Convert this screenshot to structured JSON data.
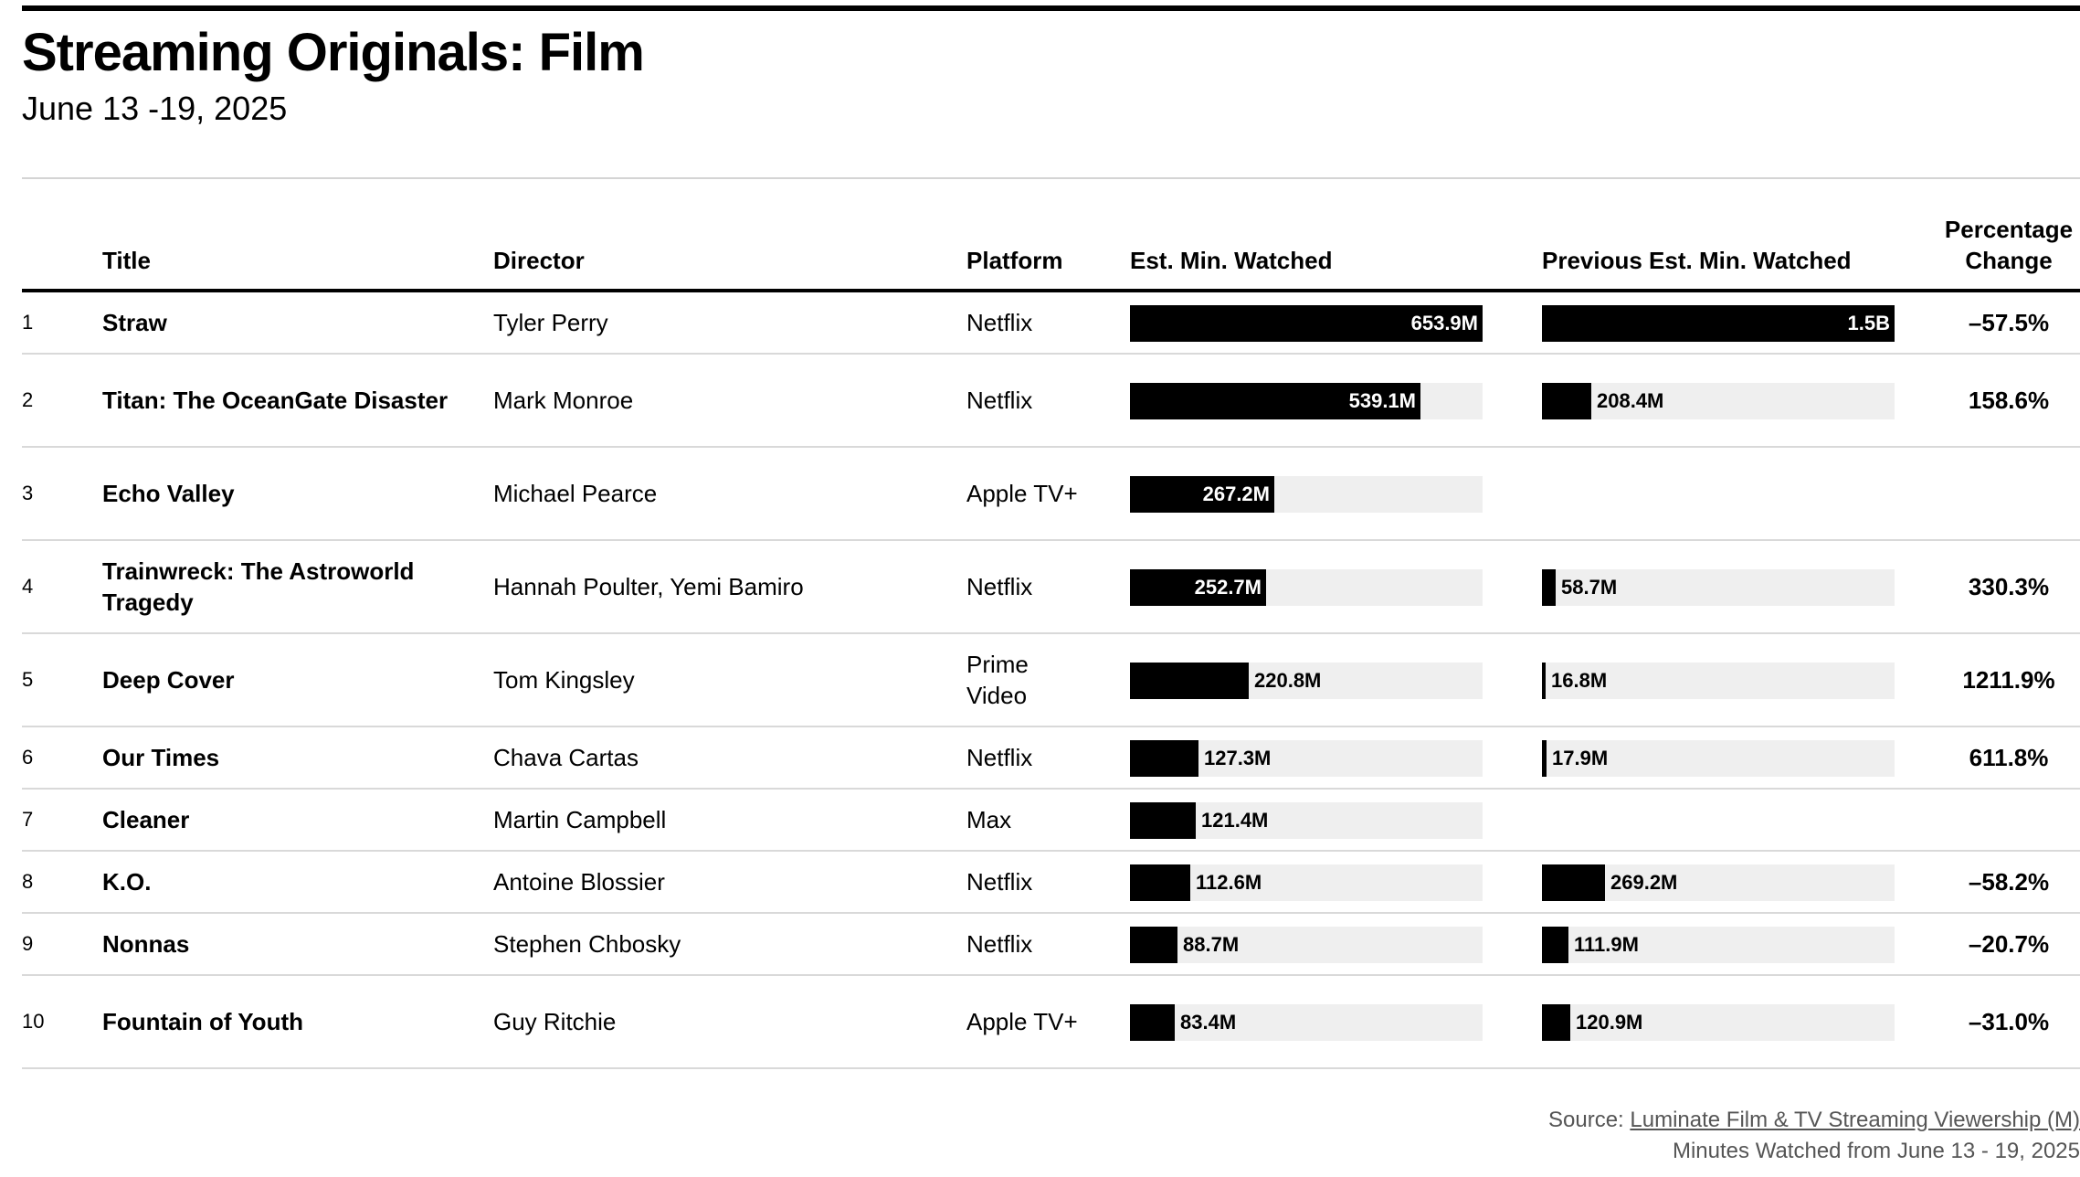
{
  "title": "Streaming Originals: Film",
  "subtitle": "June 13 -19, 2025",
  "columns": {
    "title": "Title",
    "director": "Director",
    "platform": "Platform",
    "est": "Est. Min. Watched",
    "prev": "Previous Est. Min. Watched",
    "pct_line1": "Percentage",
    "pct_line2": "Change"
  },
  "source": {
    "prefix": "Source: ",
    "link": "Luminate Film & TV Streaming Viewership (M)",
    "note": "Minutes Watched from June 13 - 19, 2025"
  },
  "chart_data": {
    "type": "table",
    "value_unit": "millions of minutes",
    "rows": [
      {
        "rank": "1",
        "title": "Straw",
        "director": "Tyler Perry",
        "platform": "Netflix",
        "est": 653.9,
        "est_label": "653.9M",
        "prev": 1500,
        "prev_label": "1.5B",
        "pct": "–57.5%"
      },
      {
        "rank": "2",
        "title": "Titan: The OceanGate Disaster",
        "director": "Mark Monroe",
        "platform": "Netflix",
        "est": 539.1,
        "est_label": "539.1M",
        "prev": 208.4,
        "prev_label": "208.4M",
        "pct": "158.6%"
      },
      {
        "rank": "3",
        "title": "Echo Valley",
        "director": "Michael Pearce",
        "platform": "Apple TV+",
        "est": 267.2,
        "est_label": "267.2M",
        "prev": null,
        "prev_label": "",
        "pct": ""
      },
      {
        "rank": "4",
        "title": "Trainwreck: The Astroworld Tragedy",
        "director": "Hannah Poulter, Yemi Bamiro",
        "platform": "Netflix",
        "est": 252.7,
        "est_label": "252.7M",
        "prev": 58.7,
        "prev_label": "58.7M",
        "pct": "330.3%"
      },
      {
        "rank": "5",
        "title": "Deep Cover",
        "director": "Tom Kingsley",
        "platform": "Prime Video",
        "est": 220.8,
        "est_label": "220.8M",
        "prev": 16.8,
        "prev_label": "16.8M",
        "pct": "1211.9%"
      },
      {
        "rank": "6",
        "title": "Our Times",
        "director": "Chava Cartas",
        "platform": "Netflix",
        "est": 127.3,
        "est_label": "127.3M",
        "prev": 17.9,
        "prev_label": "17.9M",
        "pct": "611.8%"
      },
      {
        "rank": "7",
        "title": "Cleaner",
        "director": "Martin Campbell",
        "platform": "Max",
        "est": 121.4,
        "est_label": "121.4M",
        "prev": null,
        "prev_label": "",
        "pct": ""
      },
      {
        "rank": "8",
        "title": "K.O.",
        "director": "Antoine Blossier",
        "platform": "Netflix",
        "est": 112.6,
        "est_label": "112.6M",
        "prev": 269.2,
        "prev_label": "269.2M",
        "pct": "–58.2%"
      },
      {
        "rank": "9",
        "title": "Nonnas",
        "director": "Stephen Chbosky",
        "platform": "Netflix",
        "est": 88.7,
        "est_label": "88.7M",
        "prev": 111.9,
        "prev_label": "111.9M",
        "pct": "–20.7%"
      },
      {
        "rank": "10",
        "title": "Fountain of Youth",
        "director": "Guy Ritchie",
        "platform": "Apple TV+",
        "est": 83.4,
        "est_label": "83.4M",
        "prev": 120.9,
        "prev_label": "120.9M",
        "pct": "–31.0%"
      }
    ]
  }
}
